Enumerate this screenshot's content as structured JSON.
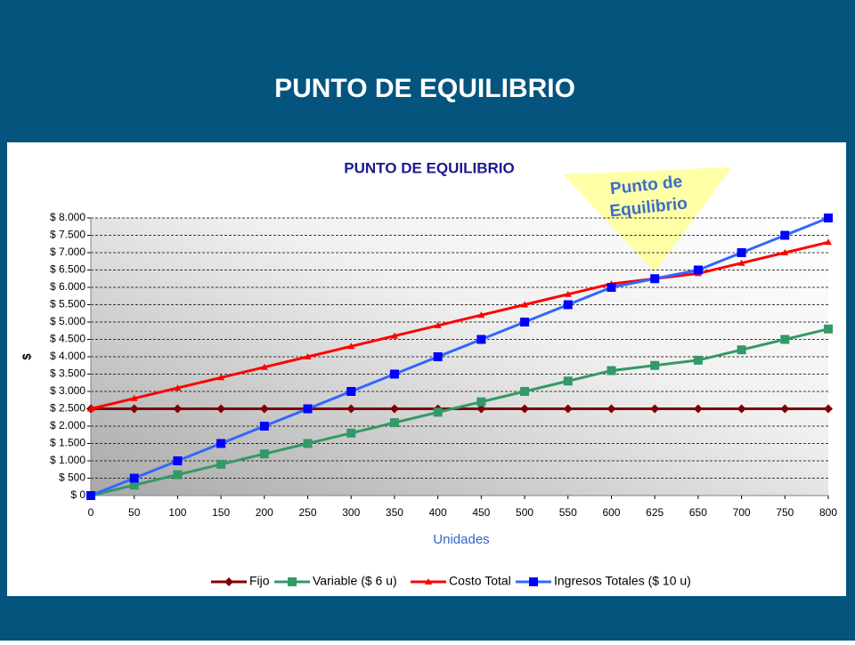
{
  "slide_title": "PUNTO DE EQUILIBRIO",
  "chart_data": {
    "type": "line",
    "title": "PUNTO DE EQUILIBRIO",
    "x_label": "Unidades",
    "y_label": "$",
    "categories": [
      0,
      50,
      100,
      150,
      200,
      250,
      300,
      350,
      400,
      450,
      500,
      550,
      600,
      625,
      650,
      700,
      750,
      800
    ],
    "ylim": [
      0,
      8000
    ],
    "yticks": [
      {
        "value": 0,
        "label": "$ 0"
      },
      {
        "value": 500,
        "label": "$ 500"
      },
      {
        "value": 1000,
        "label": "$ 1.000"
      },
      {
        "value": 1500,
        "label": "$ 1.500"
      },
      {
        "value": 2000,
        "label": "$ 2.000"
      },
      {
        "value": 2500,
        "label": "$ 2.500"
      },
      {
        "value": 3000,
        "label": "$ 3.000"
      },
      {
        "value": 3500,
        "label": "$ 3.500"
      },
      {
        "value": 4000,
        "label": "$ 4.000"
      },
      {
        "value": 4500,
        "label": "$ 4.500"
      },
      {
        "value": 5000,
        "label": "$ 5.000"
      },
      {
        "value": 5500,
        "label": "$ 5.500"
      },
      {
        "value": 6000,
        "label": "$ 6.000"
      },
      {
        "value": 6500,
        "label": "$ 6.500"
      },
      {
        "value": 7000,
        "label": "$ 7.000"
      },
      {
        "value": 7500,
        "label": "$ 7.500"
      },
      {
        "value": 8000,
        "label": "$ 8.000"
      }
    ],
    "grid": true,
    "legend": "bottom",
    "annotation": [
      "Punto de",
      "Equilibrio"
    ],
    "series": [
      {
        "name": "Fijo",
        "color": "#800000",
        "marker": "diamond",
        "values": [
          2500,
          2500,
          2500,
          2500,
          2500,
          2500,
          2500,
          2500,
          2500,
          2500,
          2500,
          2500,
          2500,
          2500,
          2500,
          2500,
          2500,
          2500
        ]
      },
      {
        "name": "Variable ($ 6 u)",
        "color": "#339966",
        "marker": "square",
        "values": [
          0,
          300,
          600,
          900,
          1200,
          1500,
          1800,
          2100,
          2400,
          2700,
          3000,
          3300,
          3600,
          3750,
          3900,
          4200,
          4500,
          4800
        ]
      },
      {
        "name": "Costo Total",
        "color": "#ff0000",
        "marker": "triangle",
        "values": [
          2500,
          2800,
          3100,
          3400,
          3700,
          4000,
          4300,
          4600,
          4900,
          5200,
          5500,
          5800,
          6100,
          6250,
          6400,
          6700,
          7000,
          7300
        ]
      },
      {
        "name": "Ingresos Totales ($ 10 u)",
        "color": "#0000ff",
        "line_color": "#3366ff",
        "marker": "square",
        "values": [
          0,
          500,
          1000,
          1500,
          2000,
          2500,
          3000,
          3500,
          4000,
          4500,
          5000,
          5500,
          6000,
          6250,
          6500,
          7000,
          7500,
          8000
        ]
      }
    ]
  }
}
